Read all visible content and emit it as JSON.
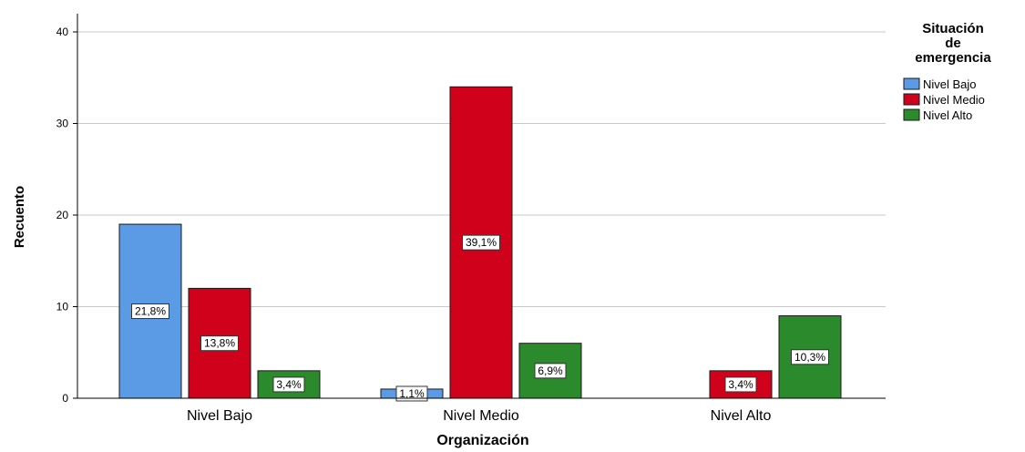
{
  "chart_data": {
    "type": "bar",
    "title": "",
    "xlabel": "Organización",
    "ylabel": "Recuento",
    "ylim": [
      0,
      40
    ],
    "yticks": [
      "0",
      "10",
      "20",
      "30",
      "40"
    ],
    "grid": true,
    "legend_placement": "top-right",
    "legend_title": [
      "Situación",
      "de",
      "emergencia"
    ],
    "categories": [
      "Nivel Bajo",
      "Nivel Medio",
      "Nivel Alto"
    ],
    "series": [
      {
        "name": "Nivel Bajo",
        "color": "#5b9be6",
        "values": [
          19,
          1,
          0
        ],
        "labels": [
          "21,8%",
          "1,1%",
          ""
        ]
      },
      {
        "name": "Nivel Medio",
        "color": "#d0021b",
        "values": [
          12,
          34,
          3
        ],
        "labels": [
          "13,8%",
          "39,1%",
          "3,4%"
        ]
      },
      {
        "name": "Nivel Alto",
        "color": "#2b8a2b",
        "values": [
          3,
          6,
          9
        ],
        "labels": [
          "3,4%",
          "6,9%",
          "10,3%"
        ]
      }
    ]
  }
}
